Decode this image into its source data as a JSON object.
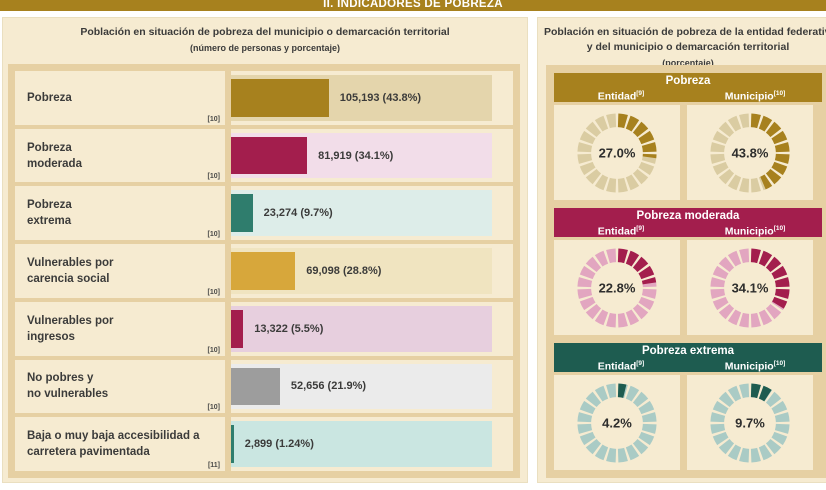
{
  "page_title": "II. INDICADORES DE POBREZA",
  "accent_colors": {
    "gold": "#a7811e",
    "crimson": "#a31e4d",
    "teal": "#1e5c50",
    "panel_cream": "#f6ebd1",
    "panel_tan": "#e6d0a3"
  },
  "left_panel": {
    "title": "Población en situación de pobreza del municipio o demarcación territorial",
    "subtitle": "(número de personas y porcentaje)",
    "rows": [
      {
        "label_lines": [
          "Pobreza"
        ],
        "footnote": "[10]",
        "value_label": "105,193 (43.8%)",
        "pct": 43.8,
        "bar_color": "#a7811e",
        "track_color": "#e4d5ac"
      },
      {
        "label_lines": [
          "Pobreza",
          "moderada"
        ],
        "footnote": "[10]",
        "value_label": "81,919 (34.1%)",
        "pct": 34.1,
        "bar_color": "#a31e4d",
        "track_color": "#f2dde9"
      },
      {
        "label_lines": [
          "Pobreza",
          "extrema"
        ],
        "footnote": "[10]",
        "value_label": "23,274 (9.7%)",
        "pct": 9.7,
        "bar_color": "#2f7d6d",
        "track_color": "#ddede9"
      },
      {
        "label_lines": [
          "Vulnerables por",
          "carencia social"
        ],
        "footnote": "[10]",
        "value_label": "69,098 (28.8%)",
        "pct": 28.8,
        "bar_color": "#d7a73b",
        "track_color": "#f0e4c0"
      },
      {
        "label_lines": [
          "Vulnerables por",
          "ingresos"
        ],
        "footnote": "[10]",
        "value_label": "13,322 (5.5%)",
        "pct": 5.5,
        "bar_color": "#a31e4d",
        "track_color": "#e7cfde"
      },
      {
        "label_lines": [
          "No pobres y",
          "no vulnerables"
        ],
        "footnote": "[10]",
        "value_label": "52,656 (21.9%)",
        "pct": 21.9,
        "bar_color": "#9d9d9d",
        "track_color": "#ebebeb"
      },
      {
        "label_lines": [
          "Baja o muy baja accesibilidad a",
          "carretera pavimentada"
        ],
        "footnote": "[11]",
        "value_label": "2,899 (1.24%)",
        "pct": 1.24,
        "bar_color": "#2f7d6d",
        "track_color": "#cae6e1"
      }
    ]
  },
  "right_panel": {
    "title_line1": "Población en situación de pobreza de la entidad federativa",
    "title_line2": "y del municipio o demarcación territorial",
    "subtitle": "(porcentaje)",
    "entity_label": "Entidad",
    "entity_footnote": "[9]",
    "municipality_label": "Municipio",
    "municipality_footnote": "[10]",
    "sections": [
      {
        "title": "Pobreza",
        "header_color": "#a7811e",
        "fill_color": "#a7811e",
        "empty_color": "#dacca2",
        "entity_pct": 27.0,
        "entity_pct_label": "27.0%",
        "municipality_pct": 43.8,
        "municipality_pct_label": "43.8%"
      },
      {
        "title": "Pobreza moderada",
        "header_color": "#a31e4d",
        "fill_color": "#a31e4d",
        "empty_color": "#e2a6c0",
        "entity_pct": 22.8,
        "entity_pct_label": "22.8%",
        "municipality_pct": 34.1,
        "municipality_pct_label": "34.1%"
      },
      {
        "title": "Pobreza extrema",
        "header_color": "#1e5c50",
        "fill_color": "#1e5c50",
        "empty_color": "#aacbc5",
        "entity_pct": 4.2,
        "entity_pct_label": "4.2%",
        "municipality_pct": 9.7,
        "municipality_pct_label": "9.7%"
      }
    ]
  },
  "chart_data": [
    {
      "type": "bar",
      "orientation": "horizontal",
      "title": "Población en situación de pobreza del municipio o demarcación territorial",
      "subtitle": "(número de personas y porcentaje)",
      "categories": [
        "Pobreza",
        "Pobreza moderada",
        "Pobreza extrema",
        "Vulnerables por carencia social",
        "Vulnerables por ingresos",
        "No pobres y no vulnerables",
        "Baja o muy baja accesibilidad a carretera pavimentada"
      ],
      "values_pct": [
        43.8,
        34.1,
        9.7,
        28.8,
        5.5,
        21.9,
        1.24
      ],
      "values_persons": [
        105193,
        81919,
        23274,
        69098,
        13322,
        52656,
        2899
      ],
      "data_labels": [
        "105,193 (43.8%)",
        "81,919 (34.1%)",
        "23,274 (9.7%)",
        "69,098 (28.8%)",
        "13,322 (5.5%)",
        "52,656 (21.9%)",
        "2,899 (1.24%)"
      ],
      "footnotes": [
        "[10]",
        "[10]",
        "[10]",
        "[10]",
        "[10]",
        "[10]",
        "[11]"
      ],
      "bar_colors": [
        "#a7811e",
        "#a31e4d",
        "#2f7d6d",
        "#d7a73b",
        "#a31e4d",
        "#9d9d9d",
        "#2f7d6d"
      ],
      "xlim": [
        0,
        117
      ],
      "grid": false,
      "legend": false
    },
    {
      "type": "pie",
      "variant": "segmented-donut",
      "segments_per_ring": 20,
      "title": "Población en situación de pobreza de la entidad federativa y del municipio o demarcación territorial (porcentaje)",
      "groups": [
        {
          "title": "Pobreza",
          "series": [
            {
              "name": "Entidad [9]",
              "value": 27.0
            },
            {
              "name": "Municipio [10]",
              "value": 43.8
            }
          ]
        },
        {
          "title": "Pobreza moderada",
          "series": [
            {
              "name": "Entidad [9]",
              "value": 22.8
            },
            {
              "name": "Municipio [10]",
              "value": 34.1
            }
          ]
        },
        {
          "title": "Pobreza extrema",
          "series": [
            {
              "name": "Entidad [9]",
              "value": 4.2
            },
            {
              "name": "Municipio [10]",
              "value": 9.7
            }
          ]
        }
      ]
    }
  ]
}
